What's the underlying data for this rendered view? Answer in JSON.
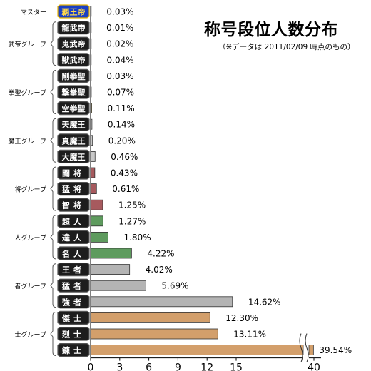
{
  "chart_data": {
    "type": "bar",
    "orientation": "horizontal",
    "title": "称号段位人数分布",
    "subtitle": "（※データは 2011/02/09 時点のもの）",
    "x_axis": {
      "ticks": [
        "0",
        "3",
        "6",
        "9",
        "12",
        "15",
        "40"
      ],
      "scale_break": "between 15 and 40"
    },
    "groups": [
      {
        "name": "マスター",
        "items": [
          "master"
        ]
      },
      {
        "name": "武帝グループ",
        "items": [
          "rank-2",
          "rank-3",
          "rank-4"
        ]
      },
      {
        "name": "拳聖グループ",
        "items": [
          "rank-5",
          "rank-6",
          "rank-7"
        ]
      },
      {
        "name": "魔王グループ",
        "items": [
          "rank-8",
          "rank-9",
          "rank-10"
        ]
      },
      {
        "name": "将グループ",
        "items": [
          "rank-11",
          "rank-12",
          "rank-13"
        ]
      },
      {
        "name": "人グループ",
        "items": [
          "rank-14",
          "rank-15",
          "rank-16"
        ]
      },
      {
        "name": "者グループ",
        "items": [
          "rank-17",
          "rank-18",
          "rank-19"
        ]
      },
      {
        "name": "士グループ",
        "items": [
          "rank-20",
          "rank-21",
          "rank-22"
        ]
      }
    ],
    "bars": [
      {
        "id": "master",
        "emblem": "覇王帝",
        "value": 0.03,
        "label": "0.03%",
        "color": "#d9b36a"
      },
      {
        "id": "rank-2",
        "emblem": "龍武帝",
        "value": 0.01,
        "label": "0.01%",
        "color": "#6e6e6e"
      },
      {
        "id": "rank-3",
        "emblem": "鬼武帝",
        "value": 0.02,
        "label": "0.02%",
        "color": "#6e6e6e"
      },
      {
        "id": "rank-4",
        "emblem": "獣武帝",
        "value": 0.04,
        "label": "0.04%",
        "color": "#6e6e6e"
      },
      {
        "id": "rank-5",
        "emblem": "剛拳聖",
        "value": 0.03,
        "label": "0.03%",
        "color": "#d9a900"
      },
      {
        "id": "rank-6",
        "emblem": "撃拳聖",
        "value": 0.07,
        "label": "0.07%",
        "color": "#d9a900"
      },
      {
        "id": "rank-7",
        "emblem": "空拳聖",
        "value": 0.11,
        "label": "0.11%",
        "color": "#d9a900"
      },
      {
        "id": "rank-8",
        "emblem": "天魔王",
        "value": 0.14,
        "label": "0.14%",
        "color": "#c8c8c8"
      },
      {
        "id": "rank-9",
        "emblem": "真魔王",
        "value": 0.2,
        "label": "0.20%",
        "color": "#c8c8c8"
      },
      {
        "id": "rank-10",
        "emblem": "大魔王",
        "value": 0.46,
        "label": "0.46%",
        "color": "#c8c8c8"
      },
      {
        "id": "rank-11",
        "emblem": "闘将",
        "value": 0.43,
        "label": "0.43%",
        "color": "#a75a5e"
      },
      {
        "id": "rank-12",
        "emblem": "猛将",
        "value": 0.61,
        "label": "0.61%",
        "color": "#a75a5e"
      },
      {
        "id": "rank-13",
        "emblem": "智将",
        "value": 1.25,
        "label": "1.25%",
        "color": "#a75a5e"
      },
      {
        "id": "rank-14",
        "emblem": "超人",
        "value": 1.27,
        "label": "1.27%",
        "color": "#5e9b5e"
      },
      {
        "id": "rank-15",
        "emblem": "達人",
        "value": 1.8,
        "label": "1.80%",
        "color": "#5e9b5e"
      },
      {
        "id": "rank-16",
        "emblem": "名人",
        "value": 4.22,
        "label": "4.22%",
        "color": "#5e9b5e"
      },
      {
        "id": "rank-17",
        "emblem": "王者",
        "value": 4.02,
        "label": "4.02%",
        "color": "#b4b4b4"
      },
      {
        "id": "rank-18",
        "emblem": "猛者",
        "value": 5.69,
        "label": "5.69%",
        "color": "#b4b4b4"
      },
      {
        "id": "rank-19",
        "emblem": "強者",
        "value": 14.62,
        "label": "14.62%",
        "color": "#b4b4b4"
      },
      {
        "id": "rank-20",
        "emblem": "傑士",
        "value": 12.3,
        "label": "12.30%",
        "color": "#d39f6b"
      },
      {
        "id": "rank-21",
        "emblem": "烈士",
        "value": 13.11,
        "label": "13.11%",
        "color": "#d39f6b"
      },
      {
        "id": "rank-22",
        "emblem": "錬士",
        "value": 39.54,
        "label": "39.54%",
        "color": "#d39f6b"
      }
    ]
  }
}
